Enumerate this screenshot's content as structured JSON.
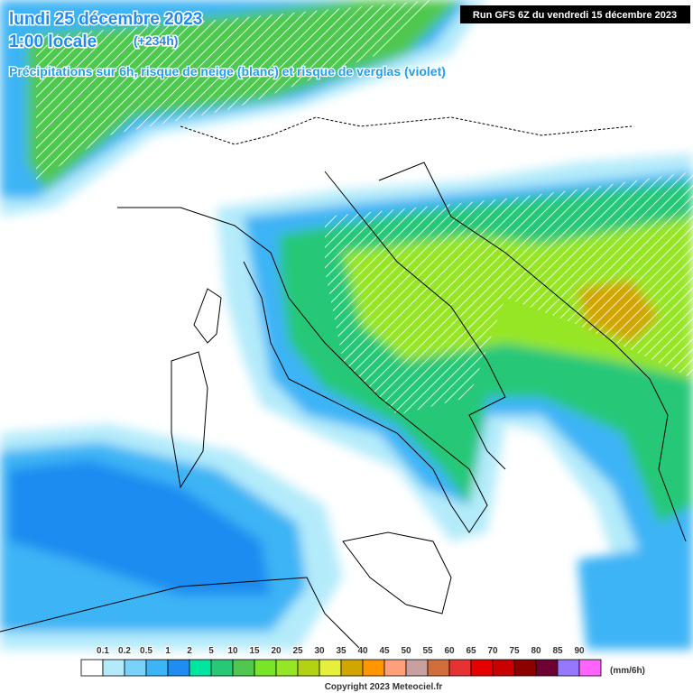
{
  "header": {
    "date": "lundi 25 décembre 2023",
    "time": "1:00 locale",
    "lead": "(+234h)",
    "subtitle": "Précipitations sur 6h, risque de neige (blanc) et risque de verglas (violet)",
    "run": "Run GFS 6Z du vendredi 15 décembre 2023"
  },
  "legend": {
    "labels": [
      "0.1",
      "0.2",
      "0.5",
      "1",
      "2",
      "5",
      "10",
      "15",
      "20",
      "25",
      "30",
      "35",
      "40",
      "45",
      "50",
      "55",
      "60",
      "65",
      "70",
      "75",
      "80",
      "85",
      "90"
    ],
    "colors": [
      "#ffffff",
      "#b4ebfa",
      "#78d2fa",
      "#3cb4f5",
      "#1e8cf0",
      "#00e6a0",
      "#28c878",
      "#50c850",
      "#78e628",
      "#96e628",
      "#b4d214",
      "#e6f03c",
      "#d2a500",
      "#ff9600",
      "#ffa078",
      "#c8a0a0",
      "#d26e3c",
      "#e63232",
      "#e60000",
      "#c80000",
      "#8c0000",
      "#6e0032",
      "#9678ff",
      "#ff64ff"
    ],
    "unit": "(mm/6h)"
  },
  "footer": {
    "copyright": "Copyright 2023 Meteociel.fr"
  }
}
